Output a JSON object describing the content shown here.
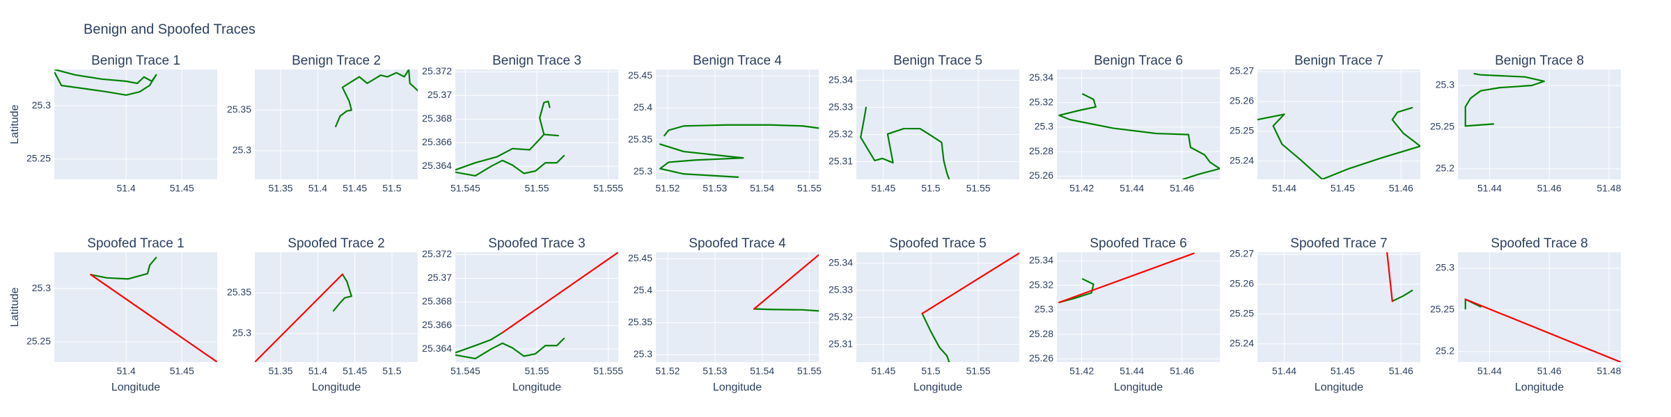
{
  "title": "Benign and Spoofed Traces",
  "chart_data": [
    {
      "type": "line",
      "title": "Benign Trace 1",
      "ylabel": "Latitude",
      "xlim": [
        51.3356,
        51.4817
      ],
      "ylim": [
        25.231,
        25.334
      ],
      "xticks": [
        51.4,
        51.45
      ],
      "yticks": [
        25.25,
        25.3
      ],
      "series": [
        {
          "color": "#008000",
          "x": [
            51.336,
            51.354,
            51.378,
            51.4,
            51.41,
            51.416,
            51.423,
            51.427,
            51.421,
            51.412,
            51.4,
            51.383,
            51.363,
            51.342,
            51.336
          ],
          "values": [
            25.334,
            25.329,
            25.325,
            25.323,
            25.321,
            25.327,
            25.323,
            25.329,
            25.319,
            25.313,
            25.31,
            25.313,
            25.316,
            25.319,
            25.331
          ]
        }
      ]
    },
    {
      "type": "line",
      "title": "Benign Trace 2",
      "xlim": [
        51.3152,
        51.5348
      ],
      "ylim": [
        25.265,
        25.4
      ],
      "xticks": [
        51.35,
        51.4,
        51.45,
        51.5
      ],
      "yticks": [
        25.3,
        25.35
      ],
      "series": [
        {
          "color": "#008000",
          "x": [
            51.4242,
            51.4303,
            51.4394,
            51.4455,
            51.4424,
            51.4333,
            51.456,
            51.4667,
            51.4848,
            51.494,
            51.5061,
            51.5167,
            51.5227,
            51.5242,
            51.5303,
            51.5348
          ],
          "values": [
            25.33,
            25.343,
            25.349,
            25.35,
            25.361,
            25.378,
            25.391,
            25.383,
            25.393,
            25.391,
            25.396,
            25.391,
            25.4,
            25.383,
            25.378,
            25.374
          ]
        }
      ]
    },
    {
      "type": "line",
      "title": "Benign Trace 3",
      "xlim": [
        51.5443,
        51.5557
      ],
      "ylim": [
        25.3629,
        25.3722
      ],
      "xticks": [
        51.545,
        51.55,
        51.555
      ],
      "yticks": [
        25.364,
        25.366,
        25.368,
        25.37,
        25.372
      ],
      "series": [
        {
          "color": "#008000",
          "x": [
            51.5443,
            51.5457,
            51.5472,
            51.5483,
            51.5495,
            51.5502,
            51.5505,
            51.5515,
            null,
            51.5505,
            51.5502,
            51.5505,
            51.5508,
            51.5509
          ],
          "values": [
            25.3637,
            25.3643,
            25.3648,
            25.3655,
            25.3654,
            25.3663,
            25.3667,
            25.3666,
            null,
            25.3667,
            25.3681,
            25.3694,
            25.3695,
            25.369
          ]
        },
        {
          "color": "#008000",
          "x": [
            51.5443,
            51.5457,
            51.5468,
            51.5476,
            51.5483,
            51.5491,
            51.5499,
            51.5506,
            51.5514,
            51.5519
          ],
          "values": [
            25.3635,
            25.3632,
            25.364,
            25.3645,
            25.3641,
            25.3634,
            25.3636,
            25.3643,
            25.3643,
            25.3649
          ]
        }
      ]
    },
    {
      "type": "line",
      "title": "Benign Trace 4",
      "xlim": [
        51.5175,
        51.552
      ],
      "ylim": [
        25.2883,
        25.46
      ],
      "xticks": [
        51.52,
        51.53,
        51.54,
        51.55
      ],
      "yticks": [
        25.3,
        25.35,
        25.4,
        25.45
      ],
      "series": [
        {
          "color": "#008000",
          "x": [
            51.5193,
            51.5202,
            51.5234,
            51.5326,
            51.5418,
            51.5486,
            51.552
          ],
          "values": [
            25.3567,
            25.365,
            25.3717,
            25.3733,
            25.3733,
            25.3717,
            25.3683
          ]
        },
        {
          "color": "#008000",
          "x": [
            51.5184,
            51.5234,
            51.536,
            51.5257,
            51.5202,
            51.5184,
            51.5234,
            51.5349
          ],
          "values": [
            25.3433,
            25.3317,
            25.3217,
            25.3183,
            25.315,
            25.305,
            25.2967,
            25.2917
          ]
        }
      ]
    },
    {
      "type": "line",
      "title": "Benign Trace 5",
      "xlim": [
        51.4216,
        51.5932
      ],
      "ylim": [
        25.3035,
        25.344
      ],
      "xticks": [
        51.45,
        51.5,
        51.55
      ],
      "yticks": [
        25.31,
        25.32,
        25.33,
        25.34
      ],
      "series": [
        {
          "color": "#008000",
          "x": [
            51.4318,
            51.4295,
            51.4261,
            51.4341,
            51.4409,
            51.4489,
            51.4602,
            51.4545,
            51.4716,
            51.4886,
            51.4977,
            51.5114,
            51.5136,
            51.517,
            51.5193
          ],
          "values": [
            25.33,
            25.3253,
            25.319,
            25.3143,
            25.3104,
            25.3112,
            25.3096,
            25.3202,
            25.3222,
            25.3222,
            25.3202,
            25.3171,
            25.3104,
            25.3057,
            25.3035
          ]
        }
      ]
    },
    {
      "type": "line",
      "title": "Benign Trace 6",
      "xlim": [
        51.4101,
        51.4751
      ],
      "ylim": [
        25.2574,
        25.347
      ],
      "xticks": [
        51.42,
        51.44,
        51.46
      ],
      "yticks": [
        25.26,
        25.28,
        25.3,
        25.32,
        25.34
      ],
      "series": [
        {
          "color": "#008000",
          "x": [
            51.4204,
            51.4247,
            51.4256,
            51.4196,
            51.411,
            51.4153,
            51.4325,
            51.4497,
            51.4626,
            51.4634,
            51.469,
            51.4712,
            51.4751,
            51.4669,
            51.4604
          ],
          "values": [
            25.327,
            25.3226,
            25.3165,
            25.3139,
            25.3096,
            25.3061,
            25.2991,
            25.2948,
            25.2939,
            25.2835,
            25.2774,
            25.2713,
            25.2661,
            25.2617,
            25.2574
          ]
        }
      ]
    },
    {
      "type": "line",
      "title": "Benign Trace 7",
      "xlim": [
        51.4354,
        51.4633
      ],
      "ylim": [
        25.2339,
        25.2707
      ],
      "xticks": [
        51.44,
        51.45,
        51.46
      ],
      "yticks": [
        25.24,
        25.25,
        25.26,
        25.27
      ],
      "series": [
        {
          "color": "#008000",
          "x": [
            51.4354,
            51.44,
            51.4381,
            51.4396,
            51.4428,
            51.4465,
            51.4511,
            51.4567,
            51.4633,
            51.4604,
            51.4585,
            51.4594,
            51.4619
          ],
          "values": [
            25.2539,
            25.2557,
            25.2518,
            25.2457,
            25.2404,
            25.2339,
            25.2375,
            25.2411,
            25.245,
            25.2493,
            25.2539,
            25.2564,
            25.2579
          ]
        }
      ]
    },
    {
      "type": "line",
      "title": "Benign Trace 8",
      "xlim": [
        51.4294,
        51.484
      ],
      "ylim": [
        25.1874,
        25.3192
      ],
      "xticks": [
        51.44,
        51.46,
        51.48
      ],
      "yticks": [
        25.2,
        25.25,
        25.3
      ],
      "series": [
        {
          "color": "#008000",
          "x": [
            51.4319,
            51.4319,
            51.4336,
            51.437,
            51.4434,
            51.4541,
            51.4583,
            51.4519,
            51.437,
            51.4349
          ],
          "values": [
            25.2513,
            25.2744,
            25.2846,
            25.2936,
            25.2974,
            25.3,
            25.3051,
            25.3103,
            25.3128,
            25.3141
          ]
        },
        {
          "color": "#008000",
          "x": [
            51.4319,
            51.4413
          ],
          "values": [
            25.2513,
            25.2538
          ]
        }
      ]
    },
    {
      "type": "line",
      "title": "Spoofed Trace 1",
      "xlabel": "Longitude",
      "ylabel": "Latitude",
      "xlim": [
        51.3356,
        51.4817
      ],
      "ylim": [
        25.231,
        25.334
      ],
      "xticks": [
        51.4,
        51.45
      ],
      "yticks": [
        25.25,
        25.3
      ],
      "series": [
        {
          "color": "#008000",
          "x": [
            51.3683,
            51.3827,
            51.4019,
            51.4192,
            51.4212,
            51.4269
          ],
          "values": [
            25.313,
            25.31,
            25.309,
            25.314,
            25.322,
            25.329
          ]
        },
        {
          "color": "#ff0000",
          "x": [
            51.3683,
            51.4817
          ],
          "values": [
            25.313,
            25.231
          ]
        }
      ]
    },
    {
      "type": "line",
      "title": "Spoofed Trace 2",
      "xlabel": "Longitude",
      "xlim": [
        51.3152,
        51.5348
      ],
      "ylim": [
        25.265,
        25.4
      ],
      "xticks": [
        51.35,
        51.4,
        51.45,
        51.5
      ],
      "yticks": [
        25.3,
        25.35
      ],
      "series": [
        {
          "color": "#008000",
          "x": [
            51.4212,
            51.4303,
            51.4364,
            51.4455,
            51.4394,
            51.4333
          ],
          "values": [
            25.328,
            25.338,
            25.344,
            25.346,
            25.364,
            25.373
          ]
        },
        {
          "color": "#ff0000",
          "x": [
            51.3152,
            51.4333
          ],
          "values": [
            25.265,
            25.373
          ]
        }
      ]
    },
    {
      "type": "line",
      "title": "Spoofed Trace 3",
      "xlabel": "Longitude",
      "xlim": [
        51.5443,
        51.5557
      ],
      "ylim": [
        25.3629,
        25.3722
      ],
      "xticks": [
        51.545,
        51.55,
        51.555
      ],
      "yticks": [
        25.364,
        25.366,
        25.368,
        25.37,
        25.372
      ],
      "series": [
        {
          "color": "#008000",
          "x": [
            51.5443,
            51.5457,
            51.5468,
            51.5476
          ],
          "values": [
            25.3637,
            25.3643,
            25.3648,
            25.3654
          ]
        },
        {
          "color": "#008000",
          "x": [
            51.5443,
            51.5457,
            51.5468,
            51.5476,
            51.5483,
            51.5491,
            51.5499,
            51.5506,
            51.5514,
            51.5519
          ],
          "values": [
            25.3635,
            25.3632,
            25.364,
            25.3645,
            25.3641,
            25.3634,
            25.3636,
            25.3643,
            25.3643,
            25.3649
          ]
        },
        {
          "color": "#ff0000",
          "x": [
            51.5476,
            51.5557
          ],
          "values": [
            25.3654,
            25.3722
          ]
        }
      ]
    },
    {
      "type": "line",
      "title": "Spoofed Trace 4",
      "xlabel": "Longitude",
      "xlim": [
        51.5175,
        51.552
      ],
      "ylim": [
        25.2883,
        25.46
      ],
      "xticks": [
        51.52,
        51.53,
        51.54,
        51.55
      ],
      "yticks": [
        25.3,
        25.35,
        25.4,
        25.45
      ],
      "series": [
        {
          "color": "#008000",
          "x": [
            51.5383,
            51.5418,
            51.5486,
            51.552
          ],
          "values": [
            25.3714,
            25.3706,
            25.37,
            25.3683
          ]
        },
        {
          "color": "#ff0000",
          "x": [
            51.5383,
            51.552
          ],
          "values": [
            25.3714,
            25.456
          ]
        }
      ]
    },
    {
      "type": "line",
      "title": "Spoofed Trace 5",
      "xlabel": "Longitude",
      "xlim": [
        51.4216,
        51.5932
      ],
      "ylim": [
        25.3035,
        25.344
      ],
      "xticks": [
        51.45,
        51.5,
        51.55
      ],
      "yticks": [
        25.31,
        25.32,
        25.33,
        25.34
      ],
      "series": [
        {
          "color": "#008000",
          "x": [
            51.4909,
            51.5,
            51.5091,
            51.517,
            51.5193
          ],
          "values": [
            25.3214,
            25.3148,
            25.3089,
            25.3058,
            25.3035
          ]
        },
        {
          "color": "#ff0000",
          "x": [
            51.4909,
            51.5932
          ],
          "values": [
            25.3214,
            25.3437
          ]
        }
      ]
    },
    {
      "type": "line",
      "title": "Spoofed Trace 6",
      "xlabel": "Longitude",
      "xlim": [
        51.4101,
        51.4751
      ],
      "ylim": [
        25.2574,
        25.347
      ],
      "xticks": [
        51.42,
        51.44,
        51.46
      ],
      "yticks": [
        25.26,
        25.28,
        25.3,
        25.32,
        25.34
      ],
      "series": [
        {
          "color": "#008000",
          "x": [
            51.4204,
            51.4247,
            51.4239,
            51.4174,
            51.411
          ],
          "values": [
            25.3252,
            25.3209,
            25.3139,
            25.3096,
            25.3061
          ]
        },
        {
          "color": "#ff0000",
          "x": [
            51.411,
            51.4647
          ],
          "values": [
            25.3061,
            25.3461
          ]
        }
      ]
    },
    {
      "type": "line",
      "title": "Spoofed Trace 7",
      "xlabel": "Longitude",
      "xlim": [
        51.4354,
        51.4633
      ],
      "ylim": [
        25.2339,
        25.2707
      ],
      "xticks": [
        51.44,
        51.45,
        51.46
      ],
      "yticks": [
        25.24,
        25.25,
        25.26,
        25.27
      ],
      "series": [
        {
          "color": "#008000",
          "x": [
            51.4585,
            51.4604,
            51.4619
          ],
          "values": [
            25.2543,
            25.2561,
            25.2579
          ]
        },
        {
          "color": "#ff0000",
          "x": [
            51.4576,
            51.4585
          ],
          "values": [
            25.2707,
            25.2543
          ]
        }
      ]
    },
    {
      "type": "line",
      "title": "Spoofed Trace 8",
      "xlabel": "Longitude",
      "xlim": [
        51.4294,
        51.484
      ],
      "ylim": [
        25.1874,
        25.3192
      ],
      "xticks": [
        51.44,
        51.46,
        51.48
      ],
      "yticks": [
        25.2,
        25.25,
        25.3
      ],
      "series": [
        {
          "color": "#008000",
          "x": [
            51.4319,
            51.4319,
            51.437
          ],
          "values": [
            25.2513,
            25.2628,
            25.2538
          ]
        },
        {
          "color": "#ff0000",
          "x": [
            51.4319,
            51.484
          ],
          "values": [
            25.2628,
            25.1873
          ]
        }
      ]
    }
  ]
}
